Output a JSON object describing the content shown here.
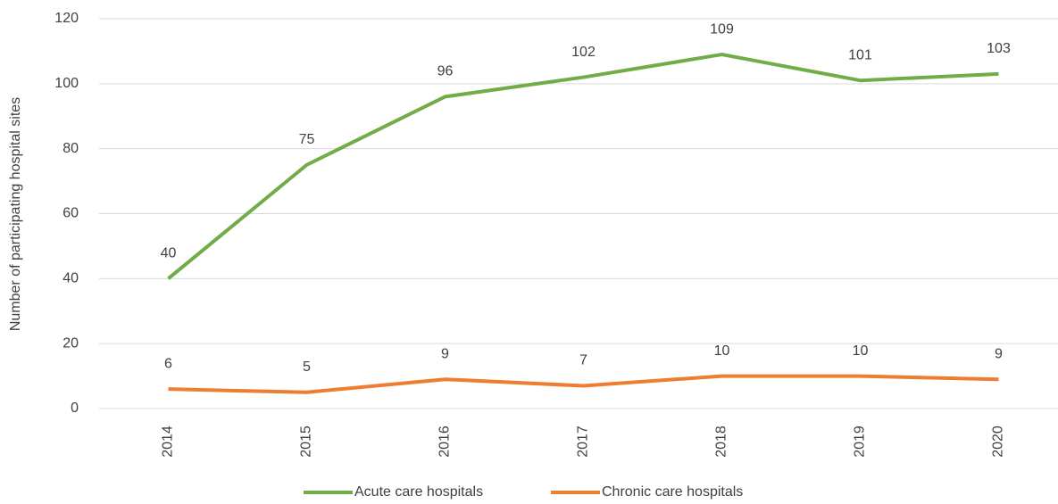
{
  "chart_data": {
    "type": "line",
    "y_label": "Number of participating hospital sites",
    "categories": [
      "2014",
      "2015",
      "2016",
      "2017",
      "2018",
      "2019",
      "2020"
    ],
    "series": [
      {
        "name": "Acute care hospitals",
        "color": "#70ad47",
        "values": [
          40,
          75,
          96,
          102,
          109,
          101,
          103
        ]
      },
      {
        "name": "Chronic care hospitals",
        "color": "#ed7d31",
        "values": [
          6,
          5,
          9,
          7,
          10,
          10,
          9
        ]
      }
    ],
    "ylim": [
      0,
      120
    ],
    "yticks": [
      0,
      20,
      40,
      60,
      80,
      100,
      120
    ],
    "grid": true,
    "legend": "bottom"
  }
}
